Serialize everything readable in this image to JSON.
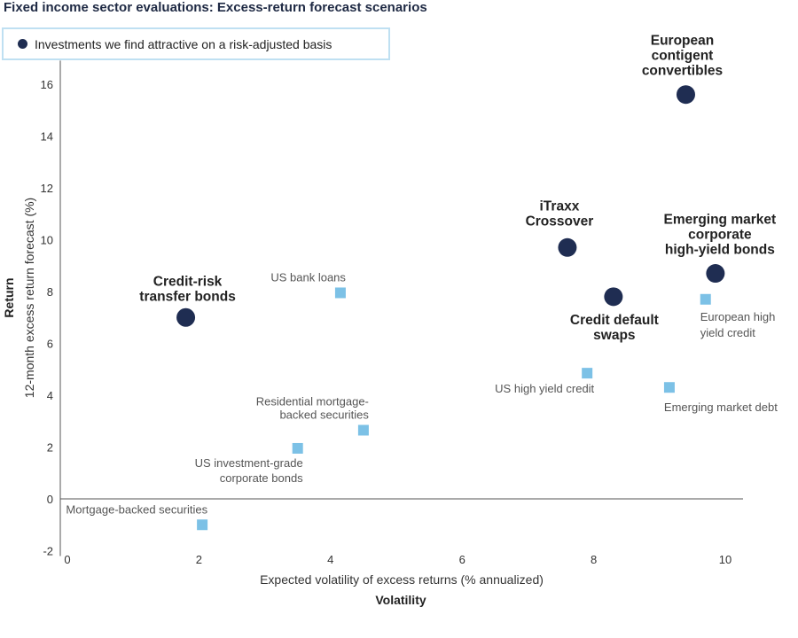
{
  "page_title": "Fixed income sector evaluations: Excess-return forecast scenarios",
  "legend": {
    "label": "Investments we find attractive on a risk-adjusted basis",
    "color": "#1f2d52"
  },
  "chart_data": {
    "type": "scatter",
    "xlabel": "Expected volatility of excess returns (% annualized)",
    "xlabel_secondary": "Volatility",
    "ylabel": "12-month excess return forecast (%)",
    "ylabel_secondary": "Return",
    "xlim": [
      0,
      10.3
    ],
    "ylim": [
      -2,
      16.5
    ],
    "x_ticks": [
      0,
      2,
      4,
      6,
      8,
      10
    ],
    "y_ticks": [
      -2,
      0,
      2,
      4,
      6,
      8,
      10,
      12,
      14,
      16
    ],
    "grid": false,
    "legend_position": "top-left",
    "series": [
      {
        "name": "Investments we find attractive on a risk-adjusted basis",
        "marker": "circle",
        "color": "#1f2d52",
        "points": [
          {
            "label": "European contigent convertibles",
            "label_lines": [
              "European",
              "contigent",
              "convertibles"
            ],
            "x": 9.4,
            "y": 15.6
          },
          {
            "label": "iTraxx Crossover",
            "label_lines": [
              "iTraxx",
              "Crossover"
            ],
            "x": 7.6,
            "y": 9.7
          },
          {
            "label": "Emerging market corporate high-yield bonds",
            "label_lines": [
              "Emerging market",
              "corporate",
              "high-yield bonds"
            ],
            "x": 9.85,
            "y": 8.7
          },
          {
            "label": "Credit default swaps",
            "label_lines": [
              "Credit default",
              "swaps"
            ],
            "x": 8.3,
            "y": 7.8
          },
          {
            "label": "Credit-risk transfer bonds",
            "label_lines": [
              "Credit-risk",
              "transfer bonds"
            ],
            "x": 1.8,
            "y": 7.0
          }
        ]
      },
      {
        "marker": "square",
        "color": "#7cc1e6",
        "points": [
          {
            "label": "US bank loans",
            "label_lines": [
              "US bank loans"
            ],
            "x": 4.15,
            "y": 7.95
          },
          {
            "label": "European high yield credit",
            "label_lines": [
              "European high",
              "yield credit"
            ],
            "x": 9.7,
            "y": 7.7
          },
          {
            "label": "US high yield credit",
            "label_lines": [
              "US high yield credit"
            ],
            "x": 7.9,
            "y": 4.85
          },
          {
            "label": "Emerging market debt",
            "label_lines": [
              "Emerging market debt"
            ],
            "x": 9.15,
            "y": 4.3
          },
          {
            "label": "Residential mortgage-backed securities",
            "label_lines": [
              "Residential mortgage-",
              "backed securities"
            ],
            "x": 4.5,
            "y": 2.65
          },
          {
            "label": "US investment-grade corporate bonds",
            "label_lines": [
              "US investment-grade",
              "corporate bonds"
            ],
            "x": 3.5,
            "y": 1.95
          },
          {
            "label": "Mortgage-backed securities",
            "label_lines": [
              "Mortgage-backed securities"
            ],
            "x": 2.05,
            "y": -1.0
          }
        ]
      }
    ]
  }
}
